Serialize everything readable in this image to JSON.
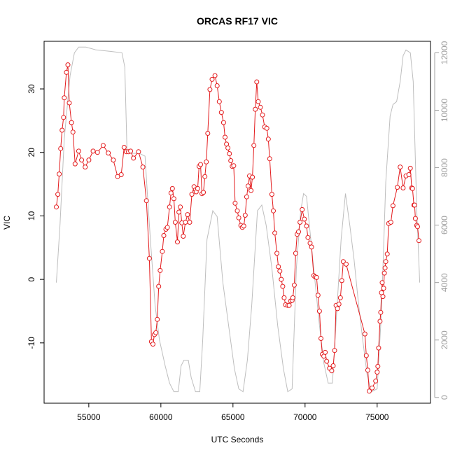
{
  "chart_data": {
    "type": "line",
    "title": "ORCAS RF17 VIC",
    "xlabel": "UTC Seconds",
    "ylabel": "VIC",
    "xlim": [
      51900,
      78700
    ],
    "ylim": [
      -19.5,
      37.5
    ],
    "y2lim": [
      -200,
      12400
    ],
    "x_ticks": [
      55000,
      60000,
      65000,
      70000,
      75000
    ],
    "y_ticks": [
      -10,
      0,
      10,
      20,
      30
    ],
    "y2_ticks": [
      0,
      2000,
      4000,
      6000,
      8000,
      10000,
      12000
    ],
    "colors": {
      "vic": "#e31a1c",
      "altitude": "#bebebe"
    },
    "series": [
      {
        "axis": "left",
        "points": [
          [
            52750,
            11.4
          ],
          [
            52850,
            13.4
          ],
          [
            52950,
            16.6
          ],
          [
            53050,
            20.6
          ],
          [
            53150,
            23.5
          ],
          [
            53250,
            25.5
          ],
          [
            53300,
            28.6
          ],
          [
            53450,
            32.6
          ],
          [
            53550,
            33.8
          ],
          [
            53650,
            27.8
          ],
          [
            53800,
            24.7
          ],
          [
            53900,
            23.2
          ],
          [
            54050,
            18.2
          ],
          [
            54300,
            20.2
          ],
          [
            54500,
            18.8
          ],
          [
            54750,
            17.7
          ],
          [
            55000,
            18.8
          ],
          [
            55300,
            20.2
          ],
          [
            55600,
            20.0
          ],
          [
            56000,
            21.1
          ],
          [
            56350,
            19.9
          ],
          [
            56700,
            18.8
          ],
          [
            57000,
            16.2
          ],
          [
            57250,
            16.5
          ],
          [
            57450,
            20.8
          ],
          [
            57600,
            20.1
          ],
          [
            57750,
            20.1
          ],
          [
            57900,
            20.2
          ],
          [
            58100,
            19.1
          ],
          [
            58450,
            20.1
          ],
          [
            58750,
            17.7
          ],
          [
            59000,
            12.4
          ],
          [
            59200,
            3.3
          ],
          [
            59350,
            -9.8
          ],
          [
            59450,
            -10.2
          ],
          [
            59550,
            -8.7
          ],
          [
            59650,
            -8.4
          ],
          [
            59750,
            -6.3
          ],
          [
            59850,
            -1.1
          ],
          [
            59950,
            1.4
          ],
          [
            60100,
            4.4
          ],
          [
            60200,
            6.9
          ],
          [
            60350,
            7.9
          ],
          [
            60450,
            8.2
          ],
          [
            60600,
            11.4
          ],
          [
            60700,
            13.6
          ],
          [
            60800,
            14.3
          ],
          [
            60900,
            12.7
          ],
          [
            61000,
            9.0
          ],
          [
            61150,
            5.9
          ],
          [
            61250,
            10.6
          ],
          [
            61350,
            11.4
          ],
          [
            61450,
            8.9
          ],
          [
            61550,
            6.8
          ],
          [
            61700,
            9.0
          ],
          [
            61850,
            10.2
          ],
          [
            62000,
            9.0
          ],
          [
            62150,
            13.4
          ],
          [
            62300,
            14.6
          ],
          [
            62400,
            14.1
          ],
          [
            62450,
            13.8
          ],
          [
            62550,
            14.3
          ],
          [
            62650,
            17.8
          ],
          [
            62750,
            18.1
          ],
          [
            62850,
            13.5
          ],
          [
            62950,
            13.7
          ],
          [
            63050,
            16.2
          ],
          [
            63150,
            18.5
          ],
          [
            63250,
            23.0
          ],
          [
            63400,
            29.9
          ],
          [
            63550,
            31.5
          ],
          [
            63750,
            32.1
          ],
          [
            63900,
            30.5
          ],
          [
            64050,
            28.0
          ],
          [
            64200,
            26.3
          ],
          [
            64350,
            24.7
          ],
          [
            64450,
            22.4
          ],
          [
            64550,
            21.3
          ],
          [
            64650,
            20.7
          ],
          [
            64750,
            19.8
          ],
          [
            64850,
            18.7
          ],
          [
            64950,
            17.8
          ],
          [
            65050,
            17.9
          ],
          [
            65150,
            12.0
          ],
          [
            65300,
            10.8
          ],
          [
            65400,
            9.7
          ],
          [
            65550,
            8.5
          ],
          [
            65650,
            8.2
          ],
          [
            65750,
            8.4
          ],
          [
            65850,
            10.1
          ],
          [
            65950,
            13.0
          ],
          [
            66050,
            14.7
          ],
          [
            66150,
            16.3
          ],
          [
            66250,
            14.0
          ],
          [
            66350,
            16.1
          ],
          [
            66450,
            21.1
          ],
          [
            66550,
            26.8
          ],
          [
            66650,
            31.1
          ],
          [
            66750,
            28.0
          ],
          [
            66900,
            27.1
          ],
          [
            67050,
            25.9
          ],
          [
            67200,
            24.0
          ],
          [
            67350,
            23.8
          ],
          [
            67450,
            22.1
          ],
          [
            67550,
            19.0
          ],
          [
            67700,
            13.4
          ],
          [
            67800,
            10.8
          ],
          [
            67900,
            7.3
          ],
          [
            68050,
            4.1
          ],
          [
            68150,
            2.0
          ],
          [
            68250,
            1.3
          ],
          [
            68350,
            0.0
          ],
          [
            68450,
            -1.1
          ],
          [
            68550,
            -2.9
          ],
          [
            68650,
            -4.0
          ],
          [
            68800,
            -4.1
          ],
          [
            68900,
            -4.1
          ],
          [
            69000,
            -3.4
          ],
          [
            69100,
            -3.3
          ],
          [
            69150,
            -2.9
          ],
          [
            69250,
            -0.9
          ],
          [
            69350,
            4.1
          ],
          [
            69450,
            7.1
          ],
          [
            69550,
            7.5
          ],
          [
            69650,
            9.0
          ],
          [
            69800,
            11.0
          ],
          [
            69950,
            9.5
          ],
          [
            70100,
            8.4
          ],
          [
            70200,
            6.6
          ],
          [
            70350,
            5.7
          ],
          [
            70450,
            5.1
          ],
          [
            70600,
            0.6
          ],
          [
            70700,
            0.4
          ],
          [
            70800,
            0.3
          ],
          [
            70900,
            -2.5
          ],
          [
            71000,
            -5.0
          ],
          [
            71100,
            -9.3
          ],
          [
            71200,
            -11.8
          ],
          [
            71300,
            -12.1
          ],
          [
            71400,
            -11.5
          ],
          [
            71500,
            -12.9
          ],
          [
            71700,
            -14.0
          ],
          [
            71850,
            -14.4
          ],
          [
            71950,
            -13.6
          ],
          [
            72050,
            -11.2
          ],
          [
            72150,
            -4.1
          ],
          [
            72250,
            -4.6
          ],
          [
            72350,
            -3.9
          ],
          [
            72450,
            -2.9
          ],
          [
            72550,
            -0.2
          ],
          [
            72650,
            2.8
          ],
          [
            72850,
            2.4
          ],
          [
            74150,
            -8.6
          ],
          [
            74250,
            -12.0
          ],
          [
            74350,
            -14.3
          ],
          [
            74450,
            -17.6
          ],
          [
            74650,
            -17.1
          ],
          [
            74900,
            -16.0
          ],
          [
            75000,
            -14.6
          ],
          [
            75050,
            -13.7
          ],
          [
            75100,
            -10.8
          ],
          [
            75200,
            -6.6
          ],
          [
            75250,
            -5.2
          ],
          [
            75300,
            -2.1
          ],
          [
            75350,
            -0.5
          ],
          [
            75400,
            -2.7
          ],
          [
            75450,
            -1.4
          ],
          [
            75500,
            1.0
          ],
          [
            75550,
            1.8
          ],
          [
            75600,
            2.8
          ],
          [
            75700,
            4.0
          ],
          [
            75800,
            8.8
          ],
          [
            75950,
            9.0
          ],
          [
            76100,
            11.6
          ],
          [
            76400,
            14.5
          ],
          [
            76600,
            17.7
          ],
          [
            76800,
            14.4
          ],
          [
            77000,
            16.3
          ],
          [
            77200,
            16.5
          ],
          [
            77300,
            17.5
          ],
          [
            77400,
            14.4
          ],
          [
            77450,
            14.3
          ],
          [
            77550,
            11.7
          ],
          [
            77600,
            11.7
          ],
          [
            77650,
            9.6
          ],
          [
            77750,
            8.5
          ],
          [
            77800,
            8.3
          ],
          [
            77900,
            6.1
          ]
        ]
      },
      {
        "axis": "right",
        "points": [
          [
            52750,
            4000
          ],
          [
            53000,
            6000
          ],
          [
            53300,
            9000
          ],
          [
            53700,
            11200
          ],
          [
            54000,
            12000
          ],
          [
            54300,
            12200
          ],
          [
            54800,
            12200
          ],
          [
            55500,
            12100
          ],
          [
            56500,
            12050
          ],
          [
            57300,
            12000
          ],
          [
            57500,
            11500
          ],
          [
            57650,
            8600
          ],
          [
            57800,
            8500
          ],
          [
            58500,
            8500
          ],
          [
            58900,
            8400
          ],
          [
            59100,
            6800
          ],
          [
            59300,
            5300
          ],
          [
            59600,
            3200
          ],
          [
            59900,
            2000
          ],
          [
            60300,
            1100
          ],
          [
            60600,
            500
          ],
          [
            60900,
            200
          ],
          [
            61200,
            200
          ],
          [
            61400,
            1100
          ],
          [
            61600,
            1300
          ],
          [
            61900,
            1300
          ],
          [
            62100,
            700
          ],
          [
            62400,
            200
          ],
          [
            62700,
            200
          ],
          [
            62900,
            2000
          ],
          [
            63200,
            5500
          ],
          [
            63600,
            6500
          ],
          [
            63900,
            6300
          ],
          [
            64300,
            4000
          ],
          [
            64700,
            2500
          ],
          [
            65100,
            1000
          ],
          [
            65400,
            300
          ],
          [
            65700,
            200
          ],
          [
            66000,
            1300
          ],
          [
            66300,
            3200
          ],
          [
            66700,
            6500
          ],
          [
            67000,
            6700
          ],
          [
            67300,
            6000
          ],
          [
            67700,
            4500
          ],
          [
            68100,
            2500
          ],
          [
            68500,
            1000
          ],
          [
            68800,
            200
          ],
          [
            69100,
            300
          ],
          [
            69400,
            4500
          ],
          [
            69700,
            6500
          ],
          [
            69900,
            7100
          ],
          [
            70100,
            7000
          ],
          [
            70400,
            5500
          ],
          [
            70700,
            4000
          ],
          [
            71000,
            2500
          ],
          [
            71300,
            1200
          ],
          [
            71600,
            500
          ],
          [
            71900,
            500
          ],
          [
            72200,
            3000
          ],
          [
            72500,
            5500
          ],
          [
            72800,
            7100
          ],
          [
            73100,
            6000
          ],
          [
            73400,
            4800
          ],
          [
            73700,
            3300
          ],
          [
            74000,
            2000
          ],
          [
            74300,
            800
          ],
          [
            74600,
            200
          ],
          [
            75000,
            300
          ],
          [
            75300,
            3000
          ],
          [
            75600,
            7500
          ],
          [
            75900,
            9800
          ],
          [
            76100,
            10200
          ],
          [
            76350,
            10300
          ],
          [
            76600,
            11000
          ],
          [
            76800,
            11900
          ],
          [
            77000,
            12100
          ],
          [
            77300,
            12000
          ],
          [
            77500,
            11000
          ],
          [
            77750,
            6500
          ],
          [
            77950,
            4000
          ]
        ]
      }
    ]
  }
}
